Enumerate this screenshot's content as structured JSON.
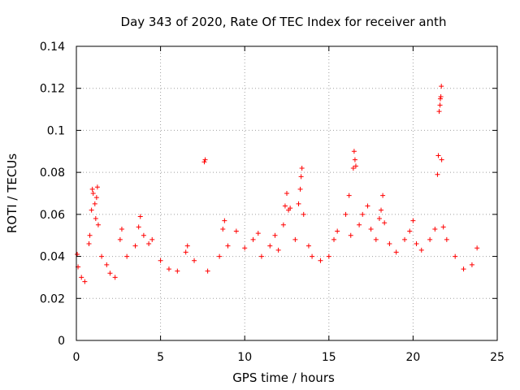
{
  "chart_data": {
    "type": "scatter",
    "title": "Day 343 of 2020, Rate Of TEC Index for receiver anth",
    "xlabel": "GPS time / hours",
    "ylabel": "ROTI / TECUs",
    "xlim": [
      0,
      25
    ],
    "ylim": [
      0,
      0.14
    ],
    "x_ticks": [
      0,
      5,
      10,
      15,
      20,
      25
    ],
    "x_tick_labels": [
      "0",
      "5",
      "10",
      "15",
      "20",
      "25"
    ],
    "y_ticks": [
      0,
      0.02,
      0.04,
      0.06,
      0.08,
      0.1,
      0.12,
      0.14
    ],
    "y_tick_labels": [
      "0",
      "0.02",
      "0.04",
      "0.06",
      "0.08",
      "0.1",
      "0.12",
      "0.14"
    ],
    "grid": true,
    "marker": "plus",
    "series": [
      {
        "name": "ROTI",
        "color": "#ff0000",
        "points": [
          [
            0.05,
            0.041
          ],
          [
            0.1,
            0.035
          ],
          [
            0.3,
            0.03
          ],
          [
            0.5,
            0.028
          ],
          [
            0.75,
            0.046
          ],
          [
            0.8,
            0.05
          ],
          [
            0.9,
            0.062
          ],
          [
            0.95,
            0.072
          ],
          [
            1.0,
            0.07
          ],
          [
            1.1,
            0.065
          ],
          [
            1.15,
            0.058
          ],
          [
            1.2,
            0.068
          ],
          [
            1.25,
            0.073
          ],
          [
            1.3,
            0.055
          ],
          [
            1.5,
            0.04
          ],
          [
            1.8,
            0.036
          ],
          [
            2.0,
            0.032
          ],
          [
            2.3,
            0.03
          ],
          [
            2.6,
            0.048
          ],
          [
            2.7,
            0.053
          ],
          [
            3.0,
            0.04
          ],
          [
            3.5,
            0.045
          ],
          [
            3.7,
            0.054
          ],
          [
            3.8,
            0.059
          ],
          [
            4.0,
            0.05
          ],
          [
            4.3,
            0.046
          ],
          [
            4.5,
            0.048
          ],
          [
            5.0,
            0.038
          ],
          [
            5.5,
            0.034
          ],
          [
            6.0,
            0.033
          ],
          [
            6.5,
            0.042
          ],
          [
            6.6,
            0.045
          ],
          [
            7.0,
            0.038
          ],
          [
            7.6,
            0.085
          ],
          [
            7.65,
            0.086
          ],
          [
            7.8,
            0.033
          ],
          [
            8.5,
            0.04
          ],
          [
            8.7,
            0.053
          ],
          [
            8.8,
            0.057
          ],
          [
            9.0,
            0.045
          ],
          [
            9.5,
            0.052
          ],
          [
            10.0,
            0.044
          ],
          [
            10.5,
            0.048
          ],
          [
            10.8,
            0.051
          ],
          [
            11.0,
            0.04
          ],
          [
            11.5,
            0.045
          ],
          [
            11.8,
            0.05
          ],
          [
            12.0,
            0.043
          ],
          [
            12.3,
            0.055
          ],
          [
            12.4,
            0.064
          ],
          [
            12.5,
            0.07
          ],
          [
            12.6,
            0.062
          ],
          [
            12.7,
            0.063
          ],
          [
            13.0,
            0.048
          ],
          [
            13.2,
            0.065
          ],
          [
            13.3,
            0.072
          ],
          [
            13.35,
            0.078
          ],
          [
            13.4,
            0.082
          ],
          [
            13.5,
            0.06
          ],
          [
            13.8,
            0.045
          ],
          [
            14.0,
            0.04
          ],
          [
            14.5,
            0.038
          ],
          [
            15.0,
            0.04
          ],
          [
            15.3,
            0.048
          ],
          [
            15.5,
            0.052
          ],
          [
            16.0,
            0.06
          ],
          [
            16.2,
            0.069
          ],
          [
            16.3,
            0.05
          ],
          [
            16.45,
            0.082
          ],
          [
            16.5,
            0.09
          ],
          [
            16.55,
            0.086
          ],
          [
            16.6,
            0.083
          ],
          [
            16.8,
            0.055
          ],
          [
            17.0,
            0.06
          ],
          [
            17.3,
            0.064
          ],
          [
            17.5,
            0.053
          ],
          [
            17.8,
            0.048
          ],
          [
            18.0,
            0.058
          ],
          [
            18.1,
            0.062
          ],
          [
            18.2,
            0.069
          ],
          [
            18.3,
            0.056
          ],
          [
            18.6,
            0.046
          ],
          [
            19.0,
            0.042
          ],
          [
            19.5,
            0.048
          ],
          [
            19.8,
            0.052
          ],
          [
            20.0,
            0.057
          ],
          [
            20.2,
            0.046
          ],
          [
            20.5,
            0.043
          ],
          [
            21.0,
            0.048
          ],
          [
            21.3,
            0.053
          ],
          [
            21.45,
            0.079
          ],
          [
            21.5,
            0.088
          ],
          [
            21.55,
            0.109
          ],
          [
            21.6,
            0.112
          ],
          [
            21.62,
            0.115
          ],
          [
            21.65,
            0.116
          ],
          [
            21.68,
            0.121
          ],
          [
            21.7,
            0.086
          ],
          [
            21.8,
            0.054
          ],
          [
            22.0,
            0.048
          ],
          [
            22.5,
            0.04
          ],
          [
            23.0,
            0.034
          ],
          [
            23.5,
            0.036
          ],
          [
            23.8,
            0.044
          ]
        ]
      }
    ]
  }
}
